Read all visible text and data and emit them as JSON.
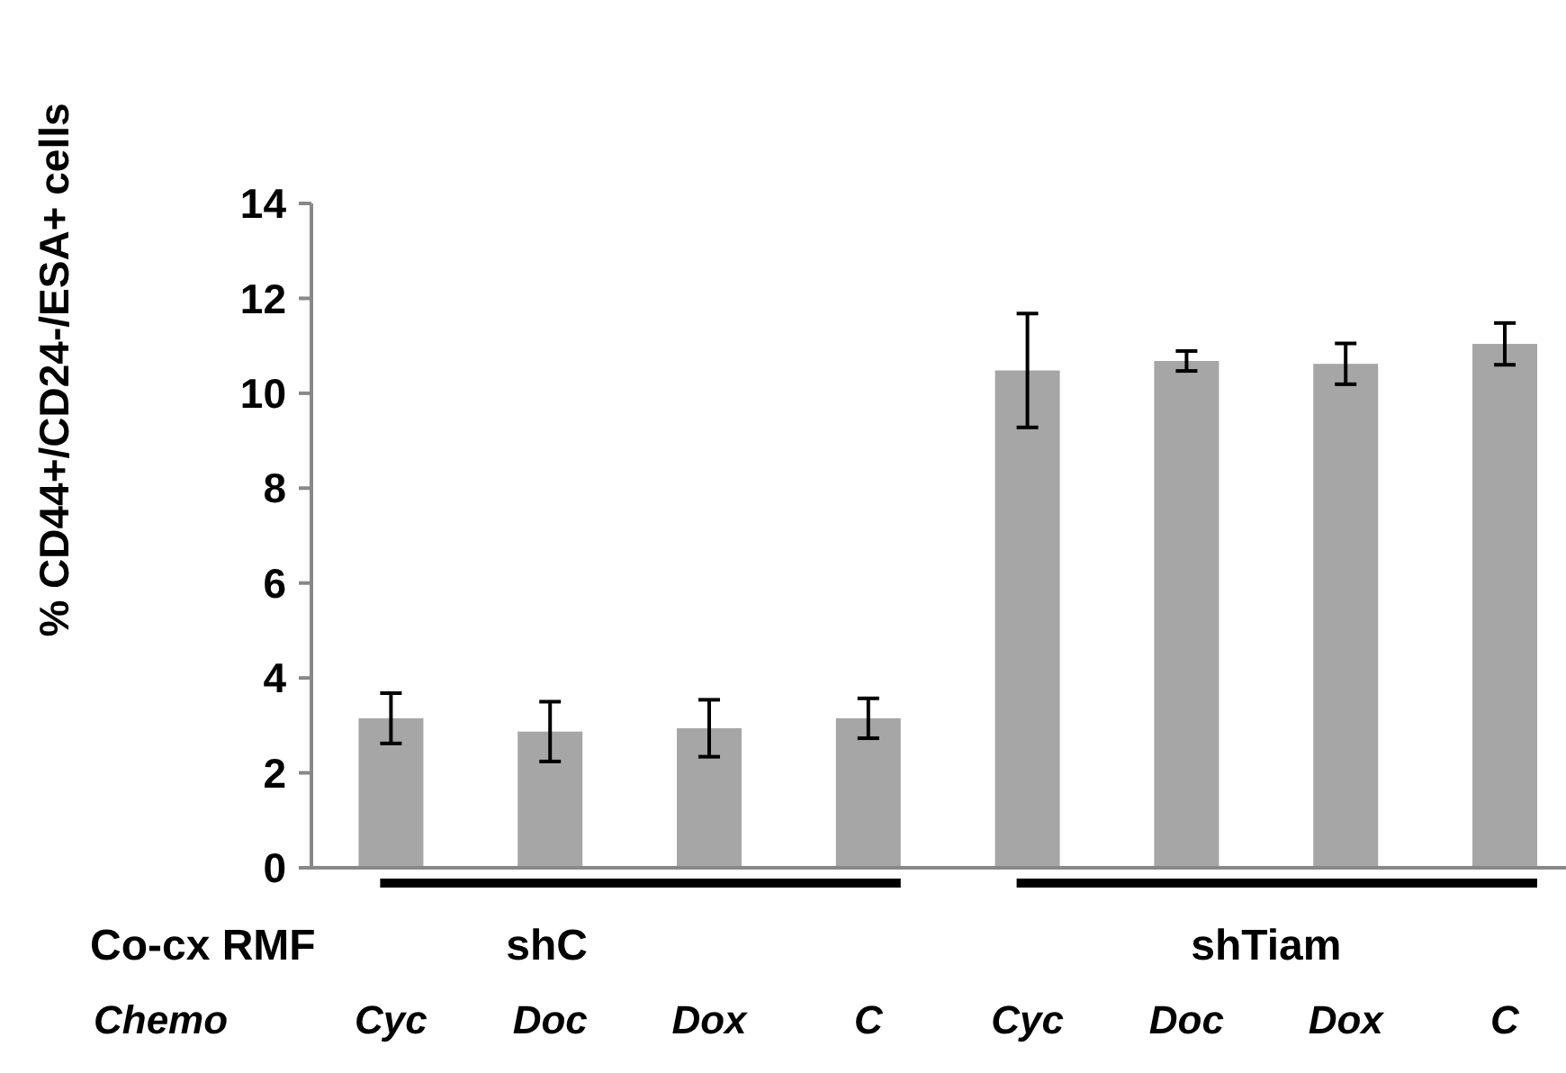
{
  "chart_data": {
    "type": "bar",
    "ylabel": "% CD44+/CD24-/ESA+ cells",
    "categories": [
      "Cyc",
      "Doc",
      "Dox",
      "C",
      "Cyc",
      "Doc",
      "Dox",
      "C"
    ],
    "values": [
      3.15,
      2.87,
      2.94,
      3.15,
      10.48,
      10.68,
      10.62,
      11.04
    ],
    "errors": [
      0.53,
      0.63,
      0.6,
      0.42,
      1.2,
      0.21,
      0.43,
      0.44
    ],
    "color": "#a6a6a6",
    "ylim": [
      0,
      14
    ],
    "yticks": [
      0,
      2,
      4,
      6,
      8,
      10,
      12,
      14
    ],
    "annotations": [
      "Co-cx RMF",
      "shC",
      "shTiam",
      "Chemo"
    ]
  }
}
